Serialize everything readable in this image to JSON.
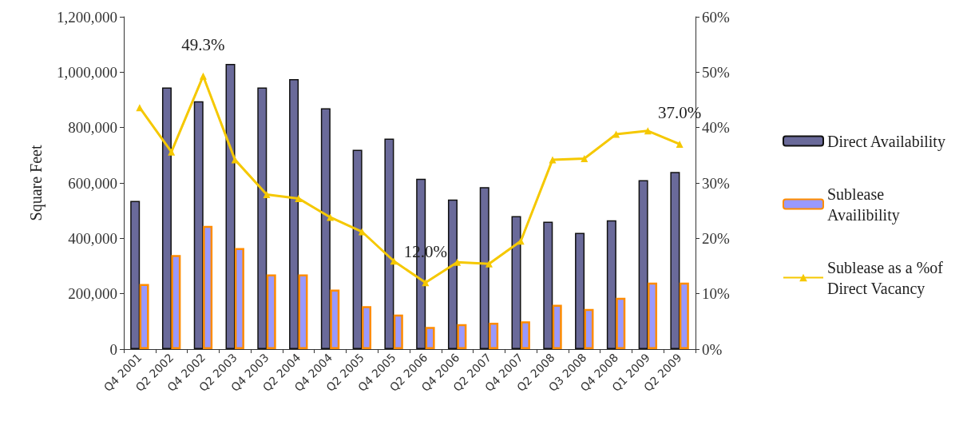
{
  "chart_data": {
    "type": "bar",
    "ylabel": "Square Feet",
    "categories": [
      "Q4 2001",
      "Q2 2002",
      "Q4 2002",
      "Q2 2003",
      "Q4 2003",
      "Q2 2004",
      "Q4 2004",
      "Q2 2005",
      "Q4 2005",
      "Q2 2006",
      "Q4 2006",
      "Q2 2007",
      "Q4 2007",
      "Q2 2008",
      "Q3 2008",
      "Q4 2008",
      "Q1 2009",
      "Q2 2009"
    ],
    "series": [
      {
        "name": "Direct Availability",
        "color": "#6a6a9a",
        "values": [
          535000,
          945000,
          895000,
          1030000,
          945000,
          975000,
          870000,
          720000,
          760000,
          615000,
          540000,
          585000,
          480000,
          460000,
          420000,
          465000,
          610000,
          640000
        ]
      },
      {
        "name": "Sublease Availibility",
        "color": "#9999ff",
        "values": [
          235000,
          340000,
          445000,
          365000,
          270000,
          270000,
          215000,
          155000,
          125000,
          80000,
          90000,
          95000,
          100000,
          160000,
          145000,
          185000,
          240000,
          240000
        ]
      },
      {
        "name": "Sublease as a %of Direct Vacancy",
        "type": "line",
        "axis": "y2",
        "color": "#f5c800",
        "marker": "triangle",
        "values": [
          43.6,
          35.6,
          49.3,
          34.2,
          27.9,
          27.2,
          23.8,
          21.2,
          15.9,
          12.0,
          15.7,
          15.4,
          19.5,
          34.2,
          34.4,
          38.8,
          39.4,
          37.0
        ],
        "value_labels": [
          null,
          null,
          "49.3%",
          null,
          null,
          null,
          null,
          null,
          null,
          "12.0%",
          null,
          null,
          null,
          null,
          null,
          null,
          null,
          "37.0%"
        ]
      }
    ],
    "ylim": [
      0,
      1200000
    ],
    "yticks": [
      {
        "value": 0,
        "label": "0"
      },
      {
        "value": 200000,
        "label": "200,000"
      },
      {
        "value": 400000,
        "label": "400,000"
      },
      {
        "value": 600000,
        "label": "600,000"
      },
      {
        "value": 800000,
        "label": "800,000"
      },
      {
        "value": 1000000,
        "label": "1,000,000"
      },
      {
        "value": 1200000,
        "label": "1,200,000"
      }
    ],
    "y2lim": [
      0,
      60
    ],
    "y2ticks": [
      {
        "value": 0,
        "label": "0%"
      },
      {
        "value": 10,
        "label": "10%"
      },
      {
        "value": 20,
        "label": "20%"
      },
      {
        "value": 30,
        "label": "30%"
      },
      {
        "value": 40,
        "label": "40%"
      },
      {
        "value": 50,
        "label": "50%"
      },
      {
        "value": 60,
        "label": "60%"
      }
    ],
    "grid": false,
    "legend": "right"
  }
}
